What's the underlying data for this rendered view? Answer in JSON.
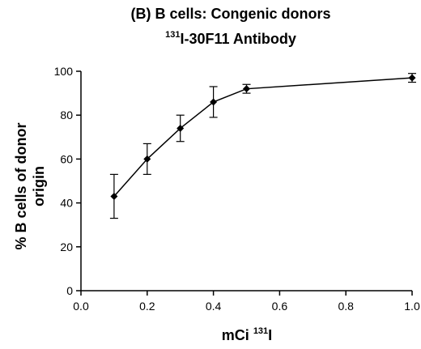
{
  "chart_data": {
    "type": "line",
    "title": "(B) B cells: Congenic donors",
    "subtitle": {
      "sup": "131",
      "text": "I-30F11 Antibody"
    },
    "xlabel": {
      "text": "mCi ",
      "sup": "131",
      "tail": "I"
    },
    "ylabel": [
      "% B cells of donor",
      "origin"
    ],
    "xlim": [
      0,
      1.0
    ],
    "ylim": [
      0,
      100
    ],
    "x_ticks": [
      "0.0",
      "0.2",
      "0.4",
      "0.6",
      "0.8",
      "1.0"
    ],
    "y_ticks": [
      "0",
      "20",
      "40",
      "60",
      "80",
      "100"
    ],
    "grid": false,
    "series": [
      {
        "points": [
          {
            "x": 0.1,
            "y": 43,
            "err": 10
          },
          {
            "x": 0.2,
            "y": 60,
            "err": 7
          },
          {
            "x": 0.3,
            "y": 74,
            "err": 6
          },
          {
            "x": 0.4,
            "y": 86,
            "err": 7
          },
          {
            "x": 0.5,
            "y": 92,
            "err": 2
          },
          {
            "x": 1.0,
            "y": 97,
            "err": 2
          }
        ]
      }
    ]
  }
}
